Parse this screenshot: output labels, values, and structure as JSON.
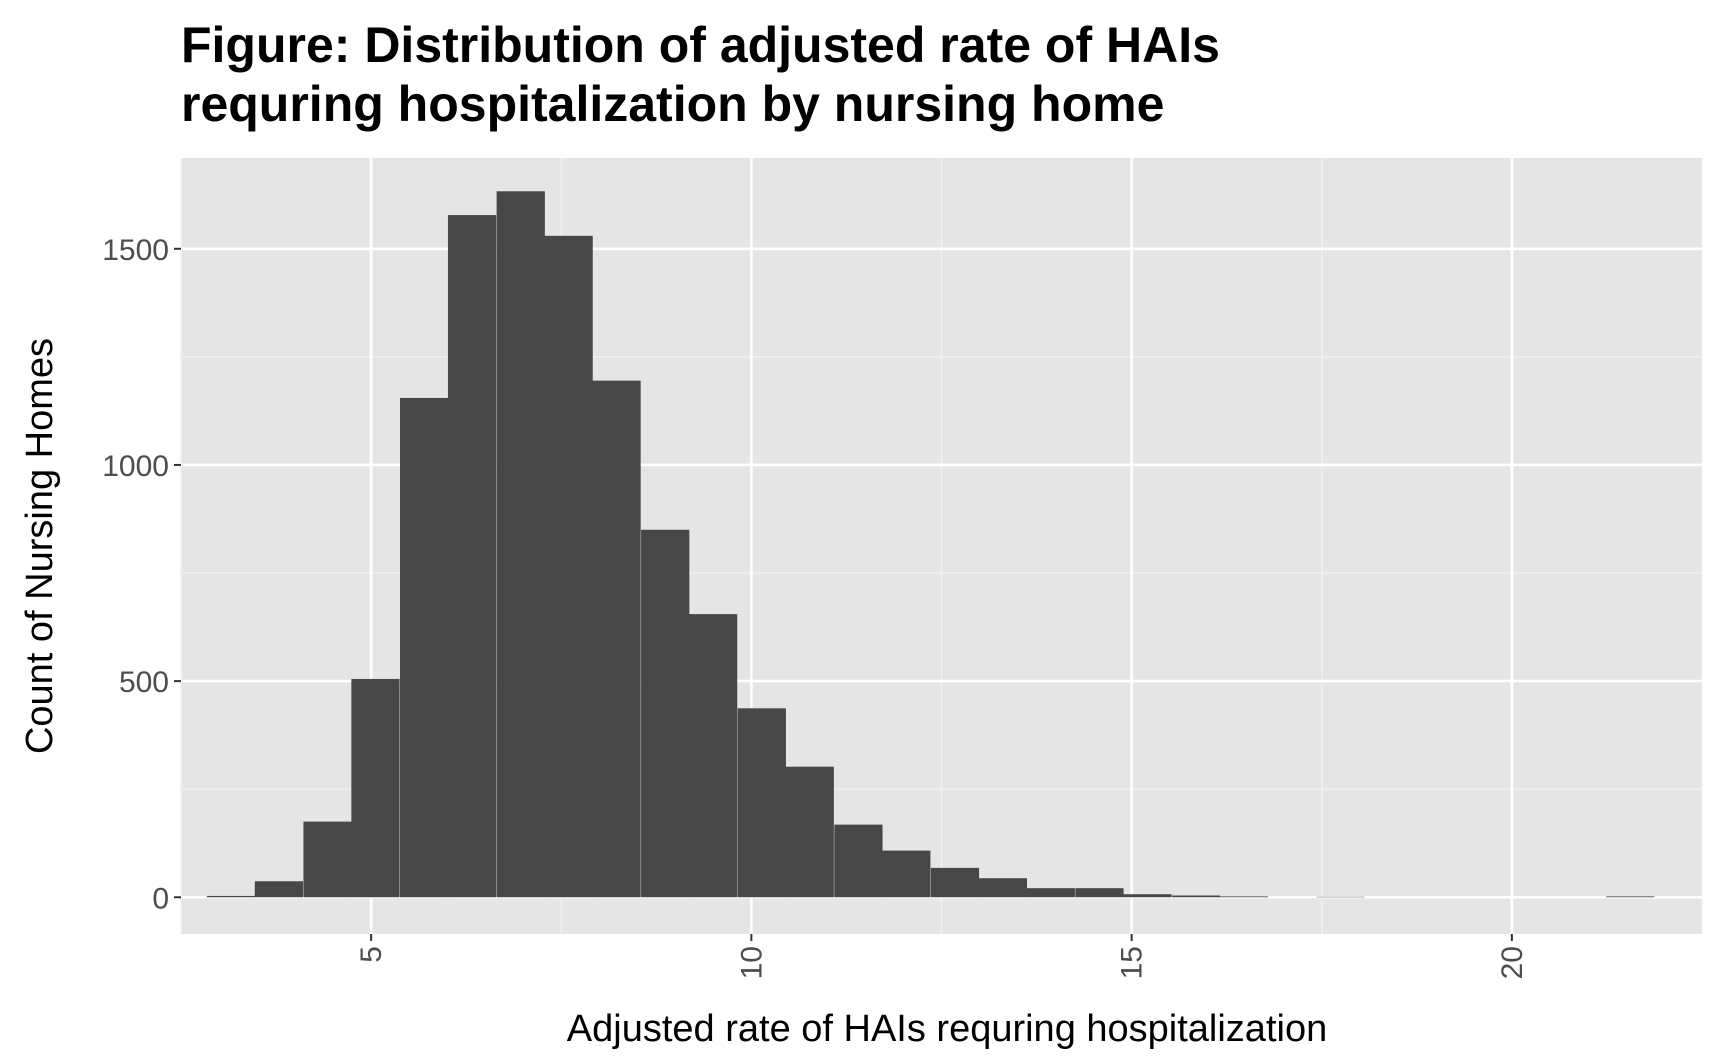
{
  "chart_data": {
    "type": "bar",
    "title_lines": [
      "Figure: Distribution of adjusted rate of HAIs",
      "requring hospitalization by nursing home"
    ],
    "xlabel": "Adjusted rate of HAIs requring hospitalization",
    "ylabel": "Count of Nursing Homes",
    "xlim": [
      2.5,
      22.5
    ],
    "ylim": [
      -85,
      1710
    ],
    "x_ticks": [
      5,
      10,
      15,
      20
    ],
    "x_tick_labels": [
      "5",
      "10",
      "15",
      "20"
    ],
    "y_ticks": [
      0,
      500,
      1000,
      1500
    ],
    "y_tick_labels": [
      "0",
      "500",
      "1000",
      "1500"
    ],
    "bin_width": 0.6343,
    "bin_starts": [
      2.84,
      3.47,
      4.11,
      4.74,
      5.38,
      6.01,
      6.65,
      7.28,
      7.91,
      8.55,
      9.18,
      9.82,
      10.45,
      11.09,
      11.72,
      12.36,
      12.99,
      13.62,
      14.26,
      14.89,
      15.53,
      16.16,
      16.8,
      17.43,
      18.07,
      18.7,
      19.33,
      19.97,
      20.6,
      21.24
    ],
    "values": [
      3,
      37,
      175,
      505,
      1155,
      1578,
      1633,
      1530,
      1195,
      850,
      655,
      437,
      302,
      168,
      108,
      68,
      44,
      21,
      21,
      7,
      4,
      2,
      0,
      1,
      0,
      0,
      0,
      0,
      0,
      2
    ],
    "grid": true,
    "legend": "none",
    "colors": {
      "bar": "#474747",
      "panel": "#e5e5e5",
      "grid_major": "#ffffff",
      "grid_minor": "#f2f2f2",
      "tick": "#333333",
      "tick_label": "#4d4d4d"
    }
  }
}
